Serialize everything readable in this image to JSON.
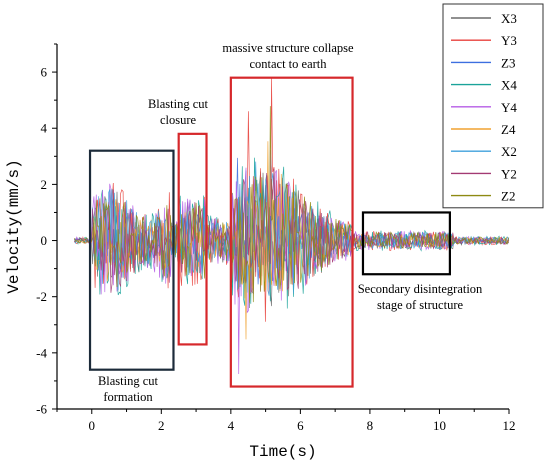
{
  "chart_data": {
    "type": "line",
    "title": "",
    "xlabel": "Time(s)",
    "ylabel": "Velocity(mm/s)",
    "xlim": [
      -1,
      12
    ],
    "ylim": [
      -6,
      7
    ],
    "xticks": [
      0,
      2,
      4,
      6,
      8,
      10,
      12
    ],
    "yticks": [
      -6,
      -4,
      -2,
      0,
      2,
      4,
      6
    ],
    "grid": false,
    "legend_position": "top-right",
    "series": [
      {
        "name": "X3",
        "color": "#6b6b6b"
      },
      {
        "name": "Y3",
        "color": "#e8413c"
      },
      {
        "name": "Z3",
        "color": "#3d6fe0"
      },
      {
        "name": "X4",
        "color": "#1aa39a"
      },
      {
        "name": "Y4",
        "color": "#b65ce6"
      },
      {
        "name": "Z4",
        "color": "#f0a230"
      },
      {
        "name": "X2",
        "color": "#3fa0dc"
      },
      {
        "name": "Y2",
        "color": "#a33a73"
      },
      {
        "name": "Z2",
        "color": "#8e8a12"
      }
    ],
    "annotations": [
      {
        "label": [
          "Blasting cut",
          "formation"
        ],
        "x_range": [
          -0.05,
          2.35
        ],
        "y_range": [
          -4.6,
          3.2
        ],
        "color": "#1c2b3a"
      },
      {
        "label": [
          "Blasting cut",
          "closure"
        ],
        "x_range": [
          2.5,
          3.3
        ],
        "y_range": [
          -3.7,
          3.8
        ],
        "color": "#d6282b"
      },
      {
        "label": [
          "massive structure collapse",
          "contact to earth"
        ],
        "x_range": [
          4.0,
          7.5
        ],
        "y_range": [
          -5.2,
          5.8
        ],
        "color": "#d6282b"
      },
      {
        "label": [
          "Secondary disintegration",
          "stage of structure"
        ],
        "x_range": [
          7.8,
          10.3
        ],
        "y_range": [
          -1.2,
          1.0
        ],
        "color": "#000000"
      }
    ]
  }
}
